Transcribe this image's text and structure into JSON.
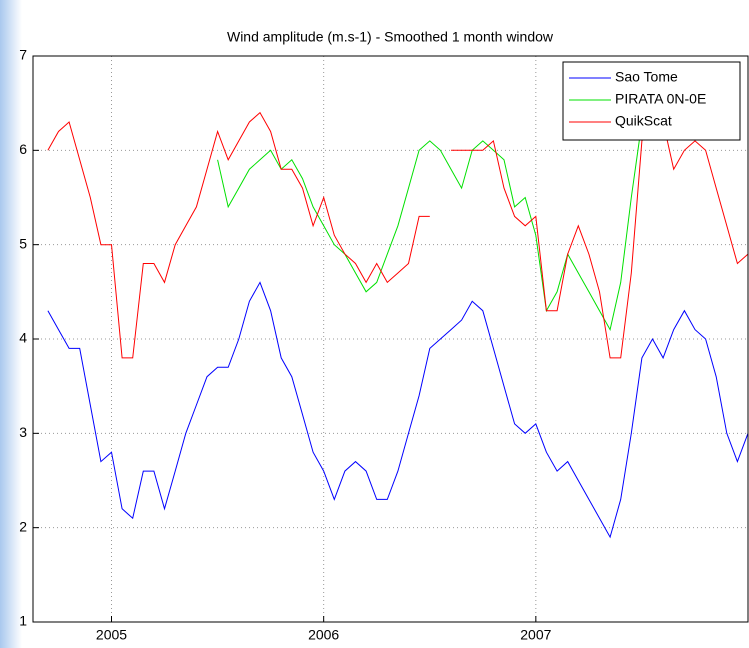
{
  "chart_data": {
    "type": "line",
    "title": "Wind amplitude (m.s-1) - Smoothed 1 month window",
    "x": [
      2004.7,
      2004.75,
      2004.8,
      2004.85,
      2004.9,
      2004.95,
      2005.0,
      2005.05,
      2005.1,
      2005.15,
      2005.2,
      2005.25,
      2005.3,
      2005.35,
      2005.4,
      2005.45,
      2005.5,
      2005.55,
      2005.6,
      2005.65,
      2005.7,
      2005.75,
      2005.8,
      2005.85,
      2005.9,
      2005.95,
      2006.0,
      2006.05,
      2006.1,
      2006.15,
      2006.2,
      2006.25,
      2006.3,
      2006.35,
      2006.4,
      2006.45,
      2006.5,
      2006.55,
      2006.6,
      2006.65,
      2006.7,
      2006.75,
      2006.8,
      2006.85,
      2006.9,
      2006.95,
      2007.0,
      2007.05,
      2007.1,
      2007.15,
      2007.2,
      2007.25,
      2007.3,
      2007.35,
      2007.4,
      2007.45,
      2007.5,
      2007.55,
      2007.6,
      2007.65,
      2007.7,
      2007.75,
      2007.8,
      2007.85,
      2007.9,
      2007.95,
      2008.0
    ],
    "series": [
      {
        "name": "Sao Tome",
        "color": "#0000ff",
        "values": [
          4.3,
          4.1,
          3.9,
          3.9,
          3.3,
          2.7,
          2.8,
          2.2,
          2.1,
          2.6,
          2.6,
          2.2,
          2.6,
          3.0,
          3.3,
          3.6,
          3.7,
          3.7,
          4.0,
          4.4,
          4.6,
          4.3,
          3.8,
          3.6,
          3.2,
          2.8,
          2.6,
          2.3,
          2.6,
          2.7,
          2.6,
          2.3,
          2.3,
          2.6,
          3.0,
          3.4,
          3.9,
          4.0,
          4.1,
          4.2,
          4.4,
          4.3,
          3.9,
          3.5,
          3.1,
          3.0,
          3.1,
          2.8,
          2.6,
          2.7,
          2.5,
          2.3,
          2.1,
          1.9,
          2.3,
          3.0,
          3.8,
          4.0,
          3.8,
          4.1,
          4.3,
          4.1,
          4.0,
          3.6,
          3.0,
          2.7,
          3.0
        ]
      },
      {
        "name": "PIRATA 0N-0E",
        "color": "#00e000",
        "values": [
          null,
          null,
          null,
          null,
          null,
          null,
          null,
          null,
          null,
          null,
          null,
          null,
          null,
          null,
          null,
          null,
          5.9,
          5.4,
          5.6,
          5.8,
          5.9,
          6.0,
          5.8,
          5.9,
          5.7,
          5.4,
          5.2,
          5.0,
          4.9,
          4.7,
          4.5,
          4.6,
          4.9,
          5.2,
          5.6,
          6.0,
          6.1,
          6.0,
          5.8,
          5.6,
          6.0,
          6.1,
          6.0,
          5.9,
          5.4,
          5.5,
          5.1,
          4.3,
          4.5,
          4.9,
          4.7,
          4.5,
          4.3,
          4.1,
          4.6,
          5.5,
          6.3,
          null,
          null,
          null,
          null,
          null,
          null,
          null,
          null,
          null,
          null
        ]
      },
      {
        "name": "QuikScat",
        "color": "#ff0000",
        "values": [
          6.0,
          6.2,
          6.3,
          5.9,
          5.5,
          5.0,
          5.0,
          3.8,
          3.8,
          4.8,
          4.8,
          4.6,
          5.0,
          5.2,
          5.4,
          5.8,
          6.2,
          5.9,
          6.1,
          6.3,
          6.4,
          6.2,
          5.8,
          5.8,
          5.6,
          5.2,
          5.5,
          5.1,
          4.9,
          4.8,
          4.6,
          4.8,
          4.6,
          4.7,
          4.8,
          5.3,
          5.3,
          null,
          6.0,
          6.0,
          6.0,
          6.0,
          6.1,
          5.6,
          5.3,
          5.2,
          5.3,
          4.3,
          4.3,
          4.9,
          5.2,
          4.9,
          4.5,
          3.8,
          3.8,
          4.7,
          6.1,
          6.3,
          6.3,
          5.8,
          6.0,
          6.1,
          6.0,
          5.6,
          5.2,
          4.8,
          4.9
        ]
      }
    ],
    "xlim": [
      2004.63,
      2008.0
    ],
    "xticks": [
      2005,
      2006,
      2007
    ],
    "ylim": [
      1,
      7
    ],
    "yticks": [
      1,
      2,
      3,
      4,
      5,
      6,
      7
    ],
    "grid": true,
    "legend": "upper right"
  }
}
